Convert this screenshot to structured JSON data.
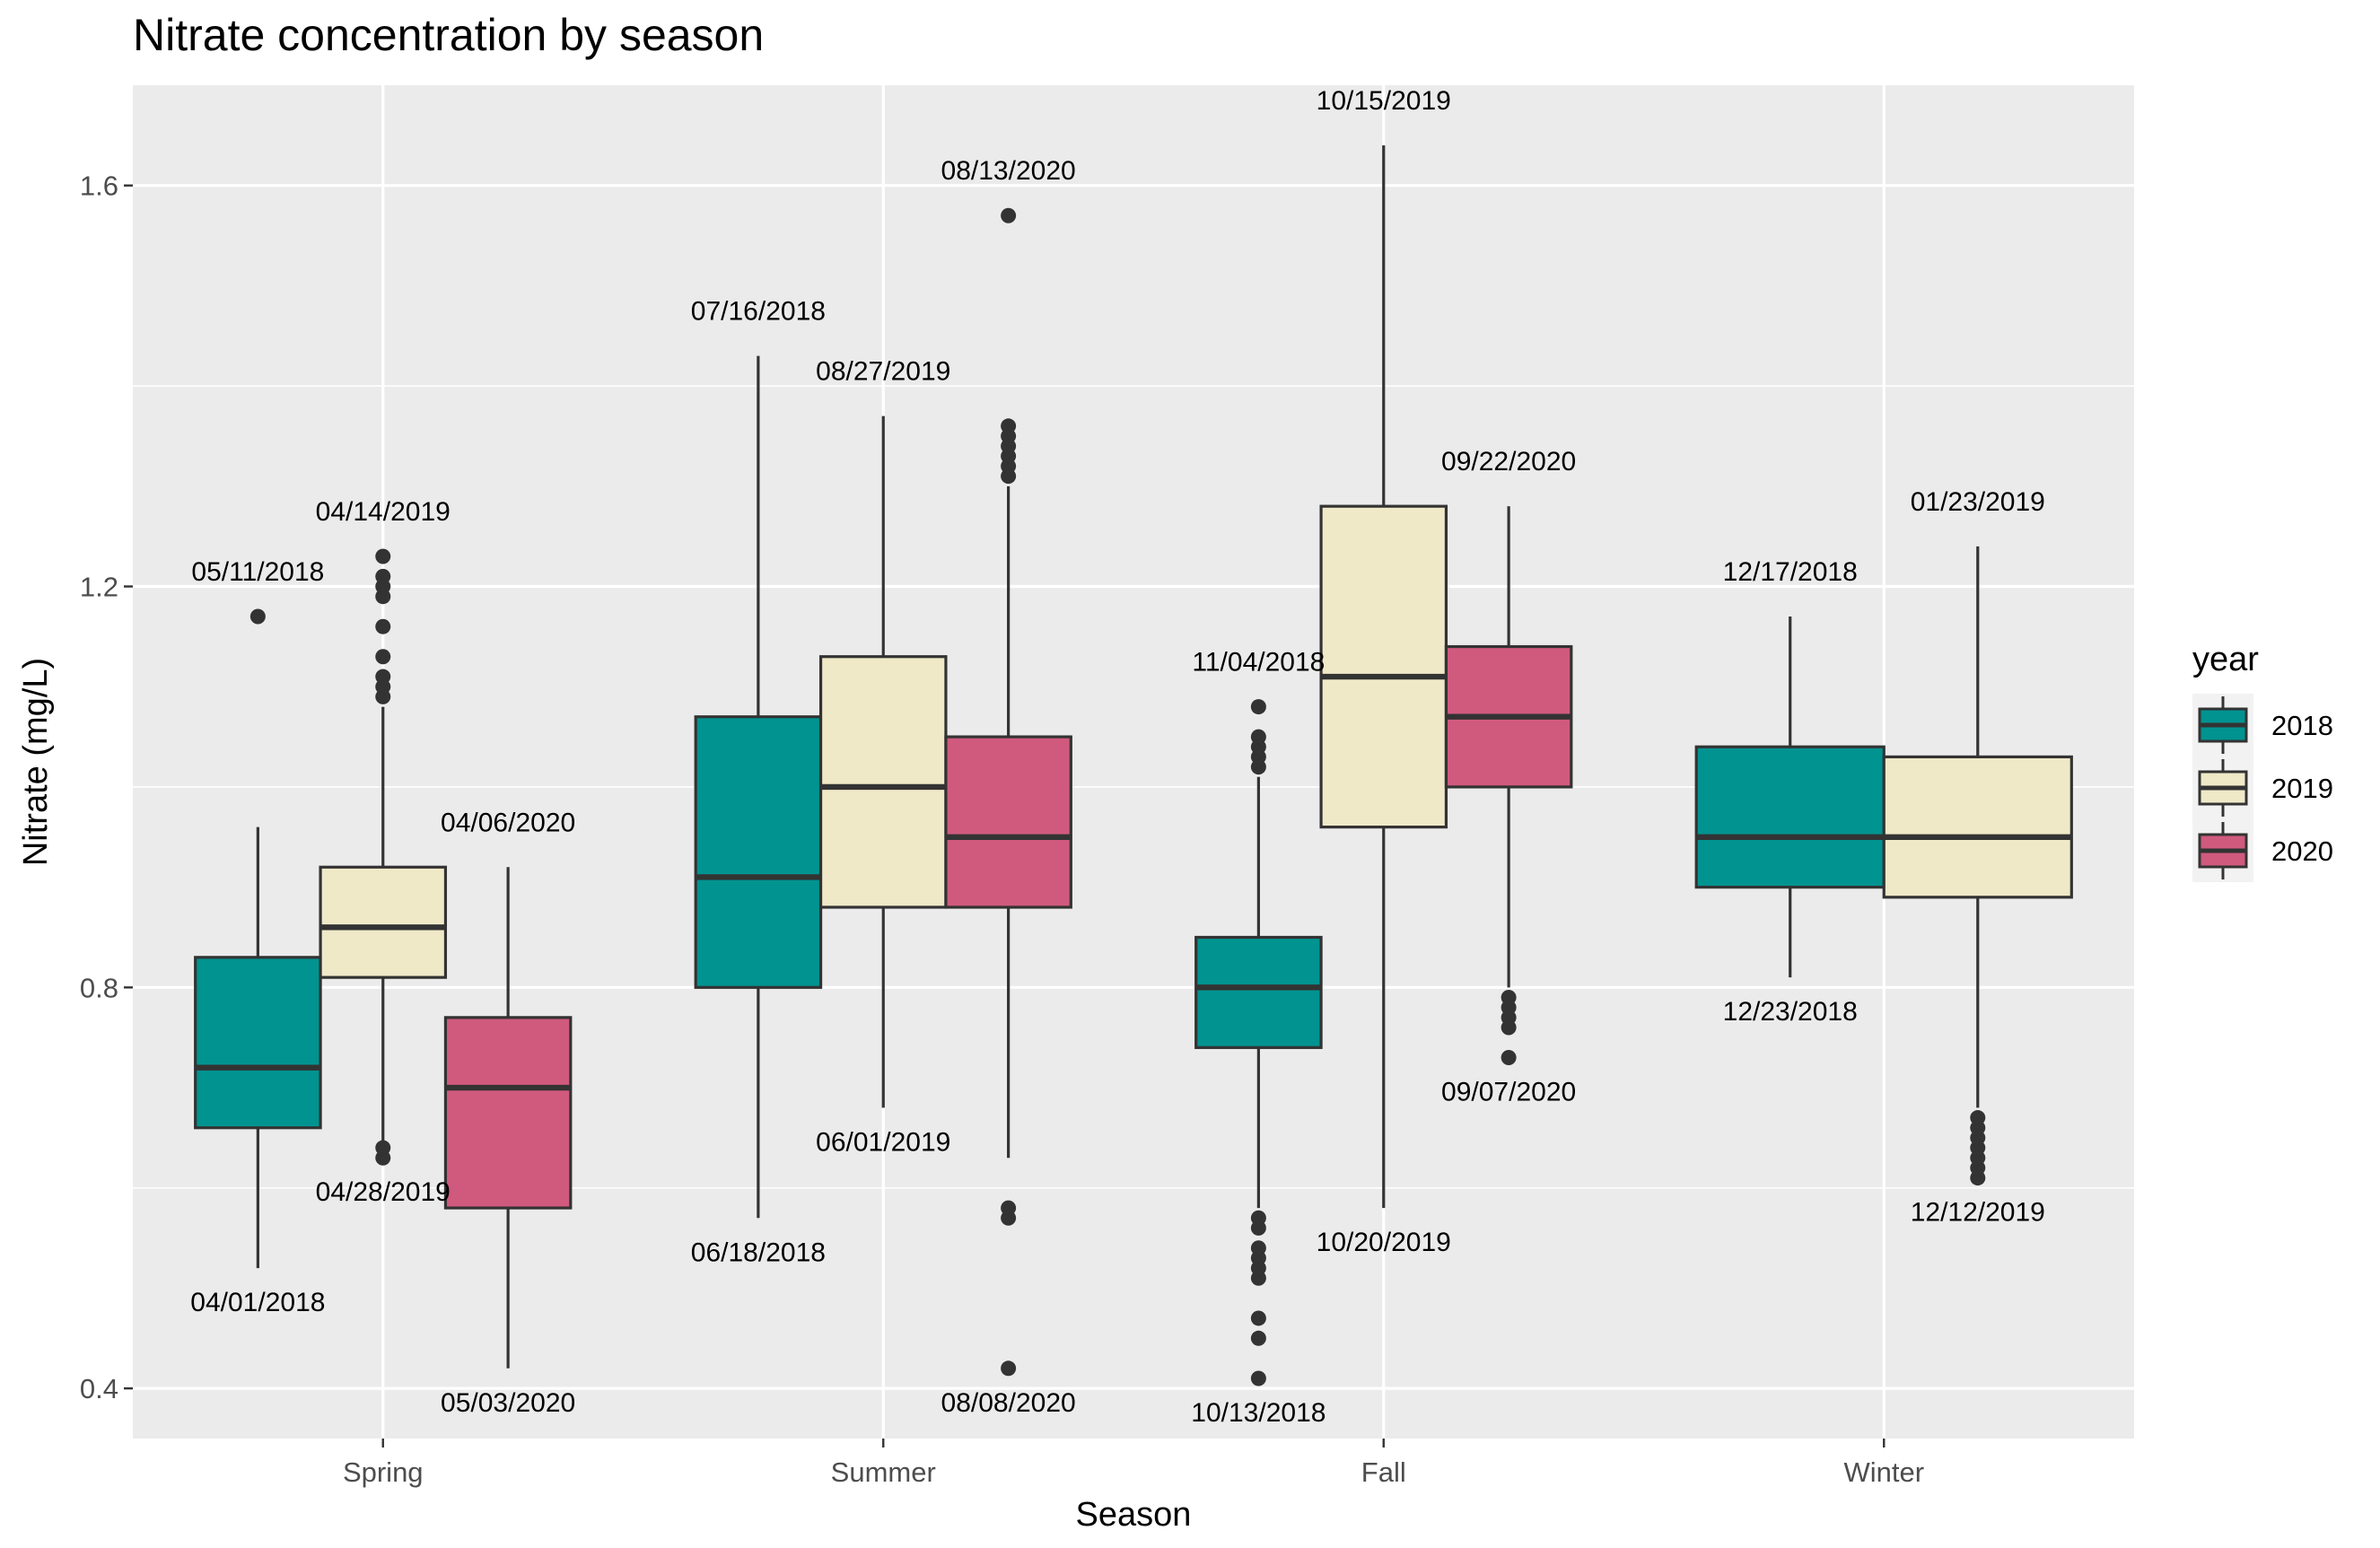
{
  "chart_data": {
    "type": "boxplot",
    "title": "Nitrate concentration by season",
    "xlabel": "Season",
    "ylabel": "Nitrate (mg/L)",
    "ylim": [
      0.35,
      1.7
    ],
    "yticks": [
      0.4,
      0.8,
      1.2,
      1.6
    ],
    "ytick_labels": [
      "0.4",
      "0.8",
      "1.2",
      "1.6"
    ],
    "categories": [
      "Spring",
      "Summer",
      "Fall",
      "Winter"
    ],
    "grid": true,
    "legend": {
      "title": "year",
      "position": "right",
      "entries": [
        "2018",
        "2019",
        "2020"
      ]
    },
    "colors": {
      "2018": "#009390",
      "2019": "#f0e9c8",
      "2020": "#d05a7e"
    },
    "groups": [
      {
        "season": "Spring",
        "year": "2018",
        "slot": 0,
        "nslots": 3,
        "lower": 0.52,
        "q1": 0.66,
        "median": 0.72,
        "q3": 0.83,
        "upper": 0.96,
        "outliers": [
          1.17
        ]
      },
      {
        "season": "Spring",
        "year": "2019",
        "slot": 1,
        "nslots": 3,
        "lower": 0.64,
        "q1": 0.81,
        "median": 0.86,
        "q3": 0.92,
        "upper": 1.08,
        "outliers": [
          0.63,
          0.64,
          1.09,
          1.1,
          1.11,
          1.13,
          1.16,
          1.19,
          1.2,
          1.21,
          1.23
        ]
      },
      {
        "season": "Spring",
        "year": "2020",
        "slot": 2,
        "nslots": 3,
        "lower": 0.42,
        "q1": 0.58,
        "median": 0.7,
        "q3": 0.77,
        "upper": 0.92,
        "outliers": []
      },
      {
        "season": "Summer",
        "year": "2018",
        "slot": 0,
        "nslots": 3,
        "lower": 0.57,
        "q1": 0.8,
        "median": 0.91,
        "q3": 1.07,
        "upper": 1.43,
        "outliers": []
      },
      {
        "season": "Summer",
        "year": "2019",
        "slot": 1,
        "nslots": 3,
        "lower": 0.68,
        "q1": 0.88,
        "median": 1.0,
        "q3": 1.13,
        "upper": 1.37,
        "outliers": []
      },
      {
        "season": "Summer",
        "year": "2020",
        "slot": 2,
        "nslots": 3,
        "lower": 0.63,
        "q1": 0.88,
        "median": 0.95,
        "q3": 1.05,
        "upper": 1.3,
        "outliers": [
          0.42,
          0.57,
          0.58,
          1.31,
          1.32,
          1.33,
          1.34,
          1.35,
          1.36,
          1.57
        ]
      },
      {
        "season": "Fall",
        "year": "2018",
        "slot": 0,
        "nslots": 3,
        "lower": 0.58,
        "q1": 0.74,
        "median": 0.8,
        "q3": 0.85,
        "upper": 1.01,
        "outliers": [
          0.41,
          0.45,
          0.47,
          0.51,
          0.52,
          0.53,
          0.54,
          0.56,
          0.57,
          1.02,
          1.03,
          1.04,
          1.05,
          1.08
        ]
      },
      {
        "season": "Fall",
        "year": "2019",
        "slot": 1,
        "nslots": 3,
        "lower": 0.58,
        "q1": 0.96,
        "median": 1.11,
        "q3": 1.28,
        "upper": 1.64,
        "outliers": []
      },
      {
        "season": "Fall",
        "year": "2020",
        "slot": 2,
        "nslots": 3,
        "lower": 0.8,
        "q1": 1.0,
        "median": 1.07,
        "q3": 1.14,
        "upper": 1.28,
        "outliers": [
          0.73,
          0.76,
          0.77,
          0.78,
          0.79
        ]
      },
      {
        "season": "Winter",
        "year": "2018",
        "slot": 0,
        "nslots": 2,
        "lower": 0.81,
        "q1": 0.9,
        "median": 0.95,
        "q3": 1.04,
        "upper": 1.17,
        "outliers": []
      },
      {
        "season": "Winter",
        "year": "2019",
        "slot": 1,
        "nslots": 2,
        "lower": 0.68,
        "q1": 0.89,
        "median": 0.95,
        "q3": 1.03,
        "upper": 1.24,
        "outliers": [
          0.61,
          0.62,
          0.63,
          0.64,
          0.65,
          0.66,
          0.67
        ]
      }
    ],
    "annotations": [
      {
        "text": "05/11/2018",
        "season": "Spring",
        "year": "2018",
        "value": 1.17,
        "side": "above"
      },
      {
        "text": "04/01/2018",
        "season": "Spring",
        "year": "2018",
        "value": 0.52,
        "side": "below"
      },
      {
        "text": "04/14/2019",
        "season": "Spring",
        "year": "2019",
        "value": 1.23,
        "side": "above"
      },
      {
        "text": "04/28/2019",
        "season": "Spring",
        "year": "2019",
        "value": 0.63,
        "side": "below"
      },
      {
        "text": "04/06/2020",
        "season": "Spring",
        "year": "2020",
        "value": 0.92,
        "side": "above"
      },
      {
        "text": "05/03/2020",
        "season": "Spring",
        "year": "2020",
        "value": 0.42,
        "side": "below"
      },
      {
        "text": "07/16/2018",
        "season": "Summer",
        "year": "2018",
        "value": 1.43,
        "side": "above"
      },
      {
        "text": "06/18/2018",
        "season": "Summer",
        "year": "2018",
        "value": 0.57,
        "side": "below"
      },
      {
        "text": "08/27/2019",
        "season": "Summer",
        "year": "2019",
        "value": 1.37,
        "side": "above"
      },
      {
        "text": "06/01/2019",
        "season": "Summer",
        "year": "2019",
        "value": 0.68,
        "side": "below"
      },
      {
        "text": "08/13/2020",
        "season": "Summer",
        "year": "2020",
        "value": 1.57,
        "side": "above"
      },
      {
        "text": "08/08/2020",
        "season": "Summer",
        "year": "2020",
        "value": 0.42,
        "side": "below"
      },
      {
        "text": "11/04/2018",
        "season": "Fall",
        "year": "2018",
        "value": 1.08,
        "side": "above"
      },
      {
        "text": "10/13/2018",
        "season": "Fall",
        "year": "2018",
        "value": 0.41,
        "side": "below"
      },
      {
        "text": "10/15/2019",
        "season": "Fall",
        "year": "2019",
        "value": 1.64,
        "side": "above"
      },
      {
        "text": "10/20/2019",
        "season": "Fall",
        "year": "2019",
        "value": 0.58,
        "side": "below"
      },
      {
        "text": "09/22/2020",
        "season": "Fall",
        "year": "2020",
        "value": 1.28,
        "side": "above"
      },
      {
        "text": "09/07/2020",
        "season": "Fall",
        "year": "2020",
        "value": 0.73,
        "side": "below"
      },
      {
        "text": "12/17/2018",
        "season": "Winter",
        "year": "2018",
        "value": 1.17,
        "side": "above"
      },
      {
        "text": "12/23/2018",
        "season": "Winter",
        "year": "2018",
        "value": 0.81,
        "side": "below"
      },
      {
        "text": "01/23/2019",
        "season": "Winter",
        "year": "2019",
        "value": 1.24,
        "side": "above"
      },
      {
        "text": "12/12/2019",
        "season": "Winter",
        "year": "2019",
        "value": 0.61,
        "side": "below"
      }
    ]
  }
}
